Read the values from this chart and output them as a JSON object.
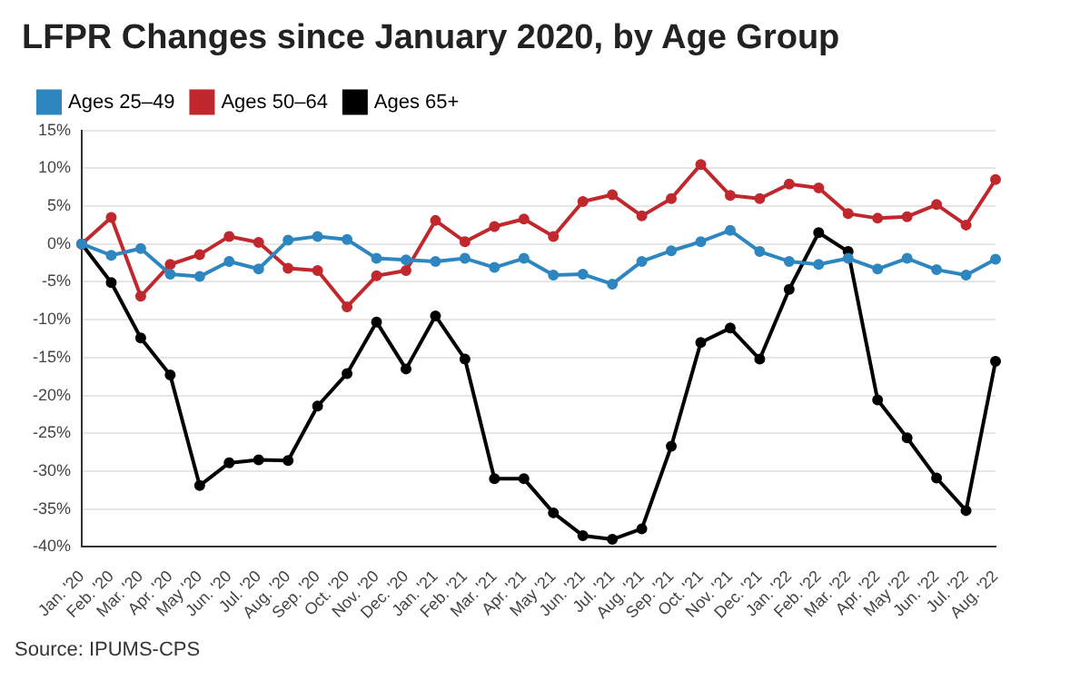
{
  "chart_data": {
    "type": "line",
    "title": "LFPR Changes since January 2020, by Age Group",
    "categories": [
      "Jan. '20",
      "Feb. '20",
      "Mar. '20",
      "Apr. '20",
      "May '20",
      "Jun. '20",
      "Jul. '20",
      "Aug. '20",
      "Sep. '20",
      "Oct. '20",
      "Nov. '20",
      "Dec. '20",
      "Jan. '21",
      "Feb. '21",
      "Mar. '21",
      "Apr. '21",
      "May '21",
      "Jun. '21",
      "Jul. '21",
      "Aug. '21",
      "Sep. '21",
      "Oct. '21",
      "Nov. '21",
      "Dec. '21",
      "Jan. '22",
      "Feb. '22",
      "Mar. '22",
      "Apr. '22",
      "May '22",
      "Jun. '22",
      "Jul. '22",
      "Aug. '22"
    ],
    "series": [
      {
        "name": "Ages 25–49",
        "color": "#2e86c1",
        "values": [
          0,
          -1.5,
          -0.6,
          -4,
          -4.3,
          -2.3,
          -3.3,
          0.5,
          1,
          0.6,
          -1.9,
          -2.1,
          -2.3,
          -1.9,
          -3.1,
          -1.9,
          -4.1,
          -4,
          -5.3,
          -2.3,
          -0.9,
          0.3,
          1.8,
          -1,
          -2.3,
          -2.7,
          -1.9,
          -3.3,
          -1.9,
          -3.4,
          -4.1,
          -2
        ]
      },
      {
        "name": "Ages 50–64",
        "color": "#c0282d",
        "values": [
          0,
          3.5,
          -6.9,
          -2.7,
          -1.4,
          1,
          0.2,
          -3.2,
          -3.5,
          -8.3,
          -4.2,
          -3.5,
          3.1,
          0.3,
          2.3,
          3.3,
          1,
          5.6,
          6.5,
          3.7,
          6,
          10.5,
          6.4,
          6,
          7.9,
          7.4,
          4,
          3.4,
          3.6,
          5.2,
          2.5,
          8.5
        ]
      },
      {
        "name": "Ages 65+",
        "color": "#000000",
        "values": [
          0,
          -5.1,
          -12.4,
          -17.3,
          -31.9,
          -28.9,
          -28.5,
          -28.6,
          -21.4,
          -17.1,
          -10.3,
          -16.5,
          -9.5,
          -15.2,
          -31,
          -31,
          -35.5,
          -38.5,
          -39,
          -37.6,
          -26.7,
          -13,
          -11.1,
          -15.2,
          -6,
          1.5,
          -1,
          -20.6,
          -25.6,
          -30.9,
          -35.2,
          -15.5
        ]
      }
    ],
    "ylim": [
      -40,
      15
    ],
    "yticks": [
      {
        "value": -40,
        "label": "-40%"
      },
      {
        "value": -35,
        "label": "-35%"
      },
      {
        "value": -30,
        "label": "-30%"
      },
      {
        "value": -25,
        "label": "-25%"
      },
      {
        "value": -20,
        "label": "-20%"
      },
      {
        "value": -15,
        "label": "-15%"
      },
      {
        "value": -10,
        "label": "-10%"
      },
      {
        "value": -5,
        "label": "-5%"
      },
      {
        "value": 0,
        "label": "0%"
      },
      {
        "value": 5,
        "label": "5%"
      },
      {
        "value": 10,
        "label": "10%"
      },
      {
        "value": 15,
        "label": "15%"
      }
    ],
    "grid": "y",
    "legend": "top left",
    "marker": "circle",
    "line_style": "solid",
    "annotations": [
      "Source: IPUMS-CPS"
    ]
  }
}
